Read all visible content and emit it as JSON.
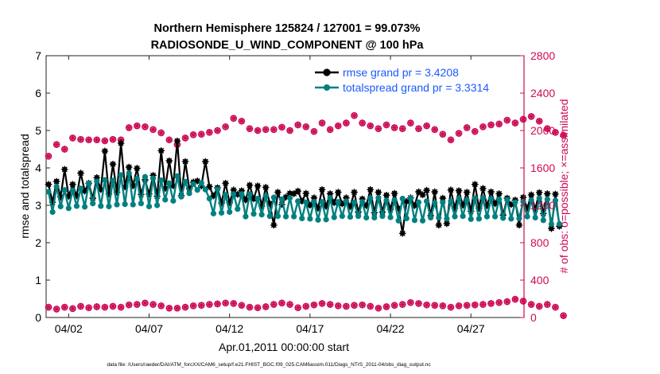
{
  "chart_data": {
    "type": "line",
    "title": "Northern Hemisphere 125824 / 127001 = 99.073%",
    "subtitle": "RADIOSONDE_U_WIND_COMPONENT @ 100 hPa",
    "xlabel": "Apr.01,2011 00:00:00 start",
    "ylabel": "rmse and totalspread",
    "y2label": "# of obs: o=possible; ×=assimilated",
    "footer": "data file: /Users/raeder/DAI/ATM_forcXX/CAM6_setup/f.e21.FHIST_BGC.f09_025.CAM6assim.011/Diags_NTrS_2011-04/obs_diag_output.nc",
    "xlim": [
      0.6,
      30.3
    ],
    "ylim": [
      0,
      7
    ],
    "y2lim": [
      0,
      2800
    ],
    "x_ticks": [
      {
        "value": 2,
        "label": "04/02"
      },
      {
        "value": 7,
        "label": "04/07"
      },
      {
        "value": 12,
        "label": "04/12"
      },
      {
        "value": 17,
        "label": "04/17"
      },
      {
        "value": 22,
        "label": "04/22"
      },
      {
        "value": 27,
        "label": "04/27"
      }
    ],
    "y_ticks": [
      {
        "value": 0,
        "label": "0"
      },
      {
        "value": 1,
        "label": "1"
      },
      {
        "value": 2,
        "label": "2"
      },
      {
        "value": 3,
        "label": "3"
      },
      {
        "value": 4,
        "label": "4"
      },
      {
        "value": 5,
        "label": "5"
      },
      {
        "value": 6,
        "label": "6"
      },
      {
        "value": 7,
        "label": "7"
      }
    ],
    "y2_ticks": [
      {
        "value": 0,
        "label": "0"
      },
      {
        "value": 400,
        "label": "400"
      },
      {
        "value": 800,
        "label": "800"
      },
      {
        "value": 1200,
        "label": "1200"
      },
      {
        "value": 1600,
        "label": "1600"
      },
      {
        "value": 2000,
        "label": "2000"
      },
      {
        "value": 2400,
        "label": "2400"
      },
      {
        "value": 2800,
        "label": "2800"
      }
    ],
    "legend_position": "top-right",
    "legend": [
      {
        "label": "rmse grand pr = 3.4208",
        "series": "rmse"
      },
      {
        "label": "totalspread grand pr = 3.3314",
        "series": "spread"
      }
    ],
    "colors": {
      "rmse": "#000000",
      "spread": "#008080",
      "obs": "#cc0a55",
      "legend_text": "#1a5aff",
      "axis": "#222222"
    },
    "x_start": 0.75,
    "x_step": 0.25,
    "series": [
      {
        "name": "rmse",
        "axis": "left",
        "values": [
          3.56,
          3.08,
          3.64,
          3.22,
          3.96,
          3.24,
          3.56,
          3.25,
          3.86,
          3.38,
          3.59,
          3.19,
          3.74,
          3.42,
          4.45,
          3.3,
          4.1,
          3.35,
          4.66,
          3.49,
          4.02,
          3.52,
          3.99,
          3.29,
          3.68,
          3.3,
          3.8,
          3.24,
          4.46,
          3.45,
          4.19,
          3.52,
          4.72,
          3.26,
          4.17,
          3.44,
          3.62,
          3.65,
          3.52,
          4.17,
          3.5,
          3.25,
          3.47,
          3.06,
          3.59,
          3.07,
          3.41,
          3.29,
          3.39,
          3.14,
          3.54,
          3.17,
          3.52,
          2.98,
          3.48,
          3.05,
          2.47,
          3.35,
          3.02,
          3.22,
          3.32,
          3.31,
          3.38,
          3.11,
          3.32,
          3.0,
          3.2,
          2.92,
          3.42,
          2.97,
          3.31,
          3.07,
          3.35,
          3.04,
          3.2,
          2.96,
          3.35,
          2.82,
          3.17,
          2.99,
          3.42,
          2.8,
          3.35,
          2.82,
          3.27,
          2.89,
          3.32,
          2.92,
          2.25,
          3.1,
          3.2,
          2.99,
          3.36,
          3.28,
          3.4,
          2.72,
          3.36,
          2.47,
          3.19,
          2.51,
          3.41,
          2.92,
          3.39,
          3.0,
          3.35,
          2.84,
          3.56,
          2.92,
          3.45,
          2.99,
          3.36,
          3.04,
          3.31,
          2.74,
          3.19,
          3.02,
          3.14,
          2.47,
          3.21,
          2.92,
          3.28,
          2.9,
          3.34,
          2.78,
          3.31,
          2.38,
          3.3,
          2.44
        ]
      },
      {
        "name": "spread",
        "axis": "left",
        "values": [
          3.36,
          2.82,
          3.5,
          2.97,
          3.41,
          2.92,
          3.4,
          2.98,
          3.45,
          2.96,
          3.58,
          3.05,
          3.64,
          2.98,
          3.68,
          2.97,
          3.66,
          3.02,
          3.81,
          3.03,
          3.86,
          3.02,
          3.71,
          3.05,
          3.76,
          2.97,
          3.72,
          3.0,
          3.67,
          3.15,
          3.59,
          3.12,
          3.78,
          3.23,
          3.63,
          3.32,
          3.57,
          3.41,
          3.6,
          3.42,
          3.18,
          2.78,
          3.43,
          2.8,
          3.28,
          2.82,
          3.3,
          2.9,
          3.3,
          2.7,
          3.3,
          2.77,
          3.18,
          2.75,
          3.25,
          2.71,
          3.21,
          2.71,
          3.16,
          2.7,
          3.2,
          2.7,
          3.11,
          2.65,
          3.08,
          2.64,
          3.1,
          2.61,
          3.09,
          2.62,
          3.2,
          2.68,
          3.09,
          2.71,
          3.11,
          2.69,
          3.08,
          2.71,
          3.09,
          2.67,
          3.19,
          2.67,
          3.2,
          2.71,
          3.13,
          2.68,
          3.14,
          2.59,
          3.18,
          2.65,
          3.19,
          2.6,
          3.08,
          2.59,
          3.11,
          2.67,
          3.06,
          2.67,
          3.08,
          2.64,
          3.11,
          2.7,
          3.18,
          2.71,
          3.14,
          2.63,
          3.19,
          2.64,
          3.19,
          2.7,
          3.17,
          2.7,
          3.16,
          2.66,
          3.15,
          2.64,
          3.08,
          2.65,
          3.1,
          2.7,
          3.14,
          2.67,
          3.19,
          2.6,
          3.16,
          2.5,
          3.13,
          2.5
        ]
      },
      {
        "name": "obs_possible",
        "axis": "right",
        "values": [
          1725,
          1850,
          1800,
          1920,
          1905,
          1900,
          1900,
          1890,
          1905,
          1900,
          2030,
          2050,
          2040,
          2010,
          1975,
          1900,
          1850,
          1920,
          1955,
          1960,
          1980,
          2000,
          2040,
          2130,
          2100,
          2020,
          2000,
          2010,
          2010,
          2035,
          2000,
          2060,
          2040,
          1990,
          2080,
          2010,
          2050,
          2080,
          2160,
          2080,
          2050,
          2020,
          2060,
          2030,
          2020,
          2080,
          2020,
          2050,
          2010,
          1960,
          1900,
          1970,
          2030,
          1990,
          2040,
          2060,
          2070,
          2110,
          2080,
          2120,
          2150,
          2100,
          2020,
          1980,
          1950
        ]
      },
      {
        "name": "obs_assimilated",
        "axis": "right",
        "values": [
          110,
          90,
          110,
          95,
          120,
          105,
          115,
          110,
          120,
          110,
          135,
          140,
          155,
          140,
          125,
          100,
          100,
          110,
          125,
          130,
          140,
          145,
          155,
          150,
          130,
          110,
          105,
          115,
          140,
          155,
          140,
          105,
          120,
          135,
          150,
          140,
          125,
          120,
          130,
          135,
          120,
          100,
          115,
          130,
          140,
          160,
          150,
          135,
          130,
          125,
          110,
          125,
          130,
          135,
          140,
          150,
          160,
          170,
          195,
          175,
          140,
          120,
          140,
          110,
          20
        ]
      }
    ]
  }
}
